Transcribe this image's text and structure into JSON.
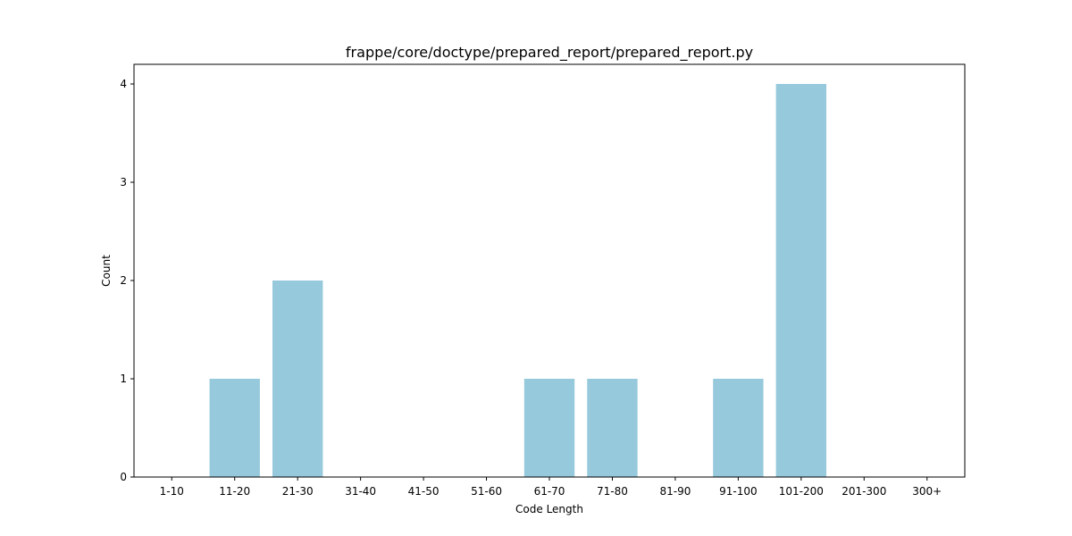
{
  "chart_data": {
    "type": "bar",
    "title": "frappe/core/doctype/prepared_report/prepared_report.py",
    "xlabel": "Code Length",
    "ylabel": "Count",
    "categories": [
      "1-10",
      "11-20",
      "21-30",
      "31-40",
      "41-50",
      "51-60",
      "61-70",
      "71-80",
      "81-90",
      "91-100",
      "101-200",
      "201-300",
      "300+"
    ],
    "values": [
      0,
      1,
      2,
      0,
      0,
      0,
      1,
      1,
      0,
      1,
      4,
      0,
      0
    ],
    "ylim": [
      0,
      4.2
    ],
    "yticks": [
      0,
      1,
      2,
      3,
      4
    ],
    "grid": false,
    "bar_color": "#96c9dc"
  }
}
